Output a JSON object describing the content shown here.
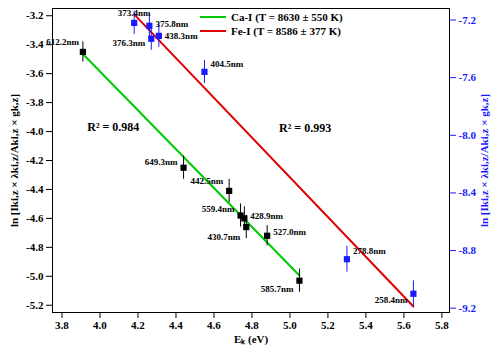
{
  "chart_data": {
    "type": "scatter",
    "x_label": "Eₖ (eV)",
    "y_label": "ln [Iki,z × λki,z/Aki,z × gk,z]",
    "y2_label": "ln [Iki,z × λki,z/Aki,z × gk,z]",
    "y2_color": "#1a1aff",
    "xlim": [
      3.75,
      5.84
    ],
    "xticks": [
      3.8,
      {
        "value": 4,
        "label": "4.0"
      },
      4.2,
      4.4,
      4.6,
      4.8,
      {
        "value": 5,
        "label": "5.0"
      },
      5.2,
      5.4,
      5.6,
      5.8
    ],
    "ylim": [
      -5.25,
      -3.15
    ],
    "yticks": [
      -3.2,
      -3.4,
      -3.6,
      -3.8,
      {
        "value": -4,
        "label": "-4.0"
      },
      -4.2,
      -4.4,
      -4.6,
      -4.8,
      {
        "value": -5,
        "label": "-5.0"
      },
      -5.2
    ],
    "y2lim": [
      -9.23,
      -7.12
    ],
    "y2ticks": [
      -7.2,
      -7.6,
      {
        "value": -8,
        "label": "-8.0"
      },
      -8.4,
      -8.8,
      -9.2
    ],
    "legend": "top",
    "series": [
      {
        "name": "Ca-I (T = 8630 ± 550 K)",
        "axis": "y",
        "marker": "square",
        "color": "#00cc00",
        "colors": [
          "#000000",
          "#000000",
          "#000000",
          "#000000",
          "#000000",
          "#000000",
          "#000000",
          "#000000"
        ],
        "x": [
          3.91,
          4.44,
          4.68,
          4.74,
          4.76,
          4.77,
          4.88,
          5.05
        ],
        "values": [
          -3.45,
          -4.25,
          -4.41,
          -4.58,
          -4.6,
          -4.66,
          -4.72,
          -5.03
        ],
        "errors": [
          0.07,
          0.08,
          0.08,
          0.08,
          0.08,
          0.08,
          0.07,
          0.08
        ],
        "point_labels": [
          "612.2nm",
          "649.3nm",
          "442.5nm",
          "559.4nm",
          "428.9nm",
          "430.7nm",
          "527.0nm",
          "585.7nm"
        ],
        "line_style": "solid"
      },
      {
        "name": "Fe-I (T = 8586 ± 377 K)",
        "axis": "y2",
        "marker": "square",
        "color": "#e00000",
        "colors": [
          "#1a1aff",
          "#1a1aff",
          "#1a1aff",
          "#1a1aff",
          "#1a1aff",
          "#1a1aff",
          "#1a1aff"
        ],
        "x": [
          4.18,
          4.26,
          4.27,
          4.31,
          4.55,
          5.3,
          5.65
        ],
        "values": [
          -7.22,
          -7.24,
          -7.33,
          -7.31,
          -7.56,
          -8.86,
          -9.1
        ],
        "errors": [
          0.08,
          0.08,
          0.08,
          0.08,
          0.08,
          0.09,
          0.09
        ],
        "point_labels": [
          "373.4nm",
          "375.8nm",
          "376.3nm",
          "438.3nm",
          "404.5nm",
          "278.8nm",
          "258.4nm"
        ],
        "line_style": "solid"
      }
    ],
    "annotations": [
      {
        "text": "R² = 0.984",
        "x": 4.07,
        "y": -3.97,
        "axis": "y"
      },
      {
        "text": "R² = 0.993",
        "x": 5.08,
        "y": -7.95,
        "axis": "y2"
      }
    ]
  }
}
